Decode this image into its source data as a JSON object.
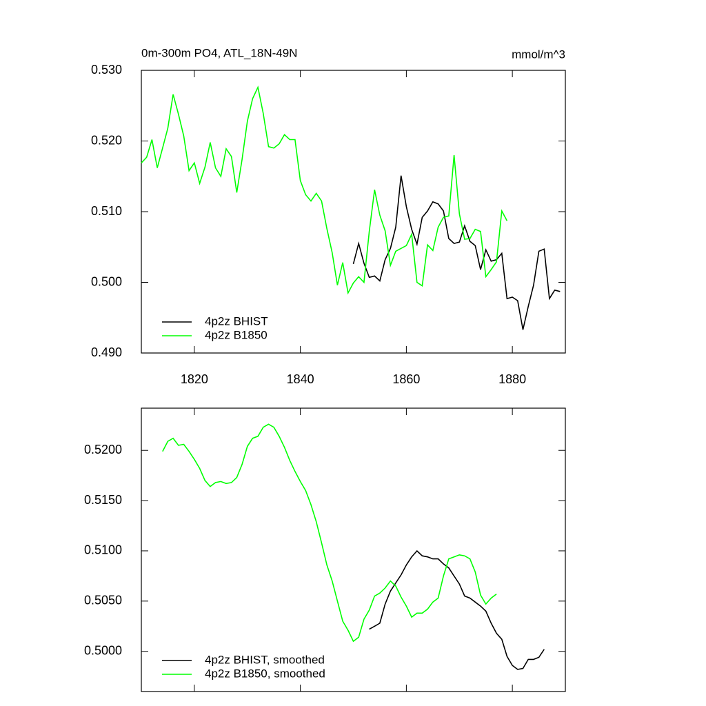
{
  "chart_data": [
    {
      "type": "line",
      "title": "0m-300m PO4, ATL_18N-49N",
      "units": "mmol/m^3",
      "xlim": [
        1810,
        1890
      ],
      "xticks": [
        1820,
        1840,
        1860,
        1880
      ],
      "ylim": [
        0.49,
        0.53
      ],
      "yticks": [
        {
          "value": 0.49,
          "label": "0.490"
        },
        {
          "value": 0.5,
          "label": "0.500"
        },
        {
          "value": 0.51,
          "label": "0.510"
        },
        {
          "value": 0.52,
          "label": "0.520"
        },
        {
          "value": 0.53,
          "label": "0.530"
        }
      ],
      "legend": "lower left",
      "series": [
        {
          "name": "4p2z BHIST",
          "color": "#000000",
          "x": [
            1850,
            1851,
            1852,
            1853,
            1854,
            1855,
            1856,
            1857,
            1858,
            1859,
            1860,
            1861,
            1862,
            1863,
            1864,
            1865,
            1866,
            1867,
            1868,
            1869,
            1870,
            1871,
            1872,
            1873,
            1874,
            1875,
            1876,
            1877,
            1878,
            1879,
            1880,
            1881,
            1882,
            1883,
            1884,
            1885,
            1886,
            1887,
            1888,
            1889
          ],
          "values": [
            0.5026,
            0.5055,
            0.5027,
            0.5007,
            0.5009,
            0.5002,
            0.5032,
            0.5048,
            0.5078,
            0.5151,
            0.5107,
            0.5075,
            0.5054,
            0.5092,
            0.5101,
            0.5114,
            0.5111,
            0.5101,
            0.5062,
            0.5055,
            0.5057,
            0.508,
            0.5058,
            0.5052,
            0.5018,
            0.5046,
            0.503,
            0.5032,
            0.5041,
            0.4977,
            0.4979,
            0.4974,
            0.4933,
            0.4966,
            0.4996,
            0.5044,
            0.5047,
            0.4977,
            0.4989,
            0.4987
          ]
        },
        {
          "name": "4p2z B1850",
          "color": "#00ff00",
          "x": [
            1810,
            1811,
            1812,
            1813,
            1814,
            1815,
            1816,
            1817,
            1818,
            1819,
            1820,
            1821,
            1822,
            1823,
            1824,
            1825,
            1826,
            1827,
            1828,
            1829,
            1830,
            1831,
            1832,
            1833,
            1834,
            1835,
            1836,
            1837,
            1838,
            1839,
            1840,
            1841,
            1842,
            1843,
            1844,
            1845,
            1846,
            1847,
            1848,
            1849,
            1850,
            1851,
            1852,
            1853,
            1854,
            1855,
            1856,
            1857,
            1858,
            1859,
            1860,
            1861,
            1862,
            1863,
            1864,
            1865,
            1866,
            1867,
            1868,
            1869,
            1870,
            1871,
            1872,
            1873,
            1874,
            1875,
            1876,
            1877,
            1878,
            1879
          ],
          "values": [
            0.5169,
            0.5177,
            0.5202,
            0.5162,
            0.519,
            0.5218,
            0.5266,
            0.5238,
            0.5207,
            0.5158,
            0.5169,
            0.514,
            0.5163,
            0.5198,
            0.5162,
            0.515,
            0.5189,
            0.5178,
            0.5127,
            0.5174,
            0.5228,
            0.526,
            0.5276,
            0.5239,
            0.5192,
            0.519,
            0.5196,
            0.5209,
            0.5202,
            0.5202,
            0.5144,
            0.5124,
            0.5115,
            0.5126,
            0.5115,
            0.5076,
            0.5042,
            0.4996,
            0.5028,
            0.4985,
            0.4999,
            0.5008,
            0.5,
            0.5072,
            0.5131,
            0.5095,
            0.5073,
            0.5024,
            0.5044,
            0.5048,
            0.5052,
            0.5068,
            0.5,
            0.4995,
            0.5053,
            0.5045,
            0.5078,
            0.5092,
            0.5094,
            0.518,
            0.5097,
            0.5061,
            0.5062,
            0.5075,
            0.5072,
            0.5008,
            0.5018,
            0.5029,
            0.5101,
            0.5087
          ]
        }
      ]
    },
    {
      "type": "line",
      "xlim": [
        1810,
        1890
      ],
      "xticks": [
        1820,
        1840,
        1860,
        1880
      ],
      "ylim": [
        0.496,
        0.5242
      ],
      "yticks": [
        {
          "value": 0.5,
          "label": "0.5000"
        },
        {
          "value": 0.505,
          "label": "0.5050"
        },
        {
          "value": 0.51,
          "label": "0.5100"
        },
        {
          "value": 0.515,
          "label": "0.5150"
        },
        {
          "value": 0.52,
          "label": "0.5200"
        }
      ],
      "legend": "lower left",
      "series": [
        {
          "name": "4p2z BHIST, smoothed",
          "color": "#000000",
          "x": [
            1853,
            1854,
            1855,
            1856,
            1857,
            1858,
            1859,
            1860,
            1861,
            1862,
            1863,
            1864,
            1865,
            1866,
            1867,
            1868,
            1869,
            1870,
            1871,
            1872,
            1873,
            1874,
            1875,
            1876,
            1877,
            1878,
            1879,
            1880,
            1881,
            1882,
            1883,
            1884,
            1885,
            1886
          ],
          "values": [
            0.5022,
            0.5025,
            0.5028,
            0.5047,
            0.506,
            0.5068,
            0.5076,
            0.5086,
            0.5094,
            0.51,
            0.5095,
            0.5094,
            0.5092,
            0.5092,
            0.5087,
            0.5083,
            0.5075,
            0.5067,
            0.5055,
            0.5053,
            0.5049,
            0.5045,
            0.504,
            0.5028,
            0.5018,
            0.5012,
            0.4995,
            0.4986,
            0.4982,
            0.4983,
            0.4992,
            0.4992,
            0.4994,
            0.5002
          ]
        },
        {
          "name": "4p2z B1850, smoothed",
          "color": "#00ff00",
          "x": [
            1814,
            1815,
            1816,
            1817,
            1818,
            1819,
            1820,
            1821,
            1822,
            1823,
            1824,
            1825,
            1826,
            1827,
            1828,
            1829,
            1830,
            1831,
            1832,
            1833,
            1834,
            1835,
            1836,
            1837,
            1838,
            1839,
            1840,
            1841,
            1842,
            1843,
            1844,
            1845,
            1846,
            1847,
            1848,
            1849,
            1850,
            1851,
            1852,
            1853,
            1854,
            1855,
            1856,
            1857,
            1858,
            1859,
            1860,
            1861,
            1862,
            1863,
            1864,
            1865,
            1866,
            1867,
            1868,
            1869,
            1870,
            1871,
            1872,
            1873,
            1874,
            1875,
            1876,
            1877
          ],
          "values": [
            0.5199,
            0.5209,
            0.5212,
            0.5205,
            0.5206,
            0.5199,
            0.5191,
            0.5182,
            0.517,
            0.5164,
            0.5168,
            0.5169,
            0.5167,
            0.5168,
            0.5173,
            0.5186,
            0.5204,
            0.5212,
            0.5214,
            0.5223,
            0.5226,
            0.5223,
            0.5214,
            0.5203,
            0.519,
            0.5179,
            0.5169,
            0.516,
            0.5146,
            0.5129,
            0.5108,
            0.5086,
            0.507,
            0.505,
            0.503,
            0.5021,
            0.501,
            0.5014,
            0.5032,
            0.5041,
            0.5055,
            0.5058,
            0.5063,
            0.507,
            0.5065,
            0.5054,
            0.5045,
            0.5034,
            0.5038,
            0.5038,
            0.5042,
            0.5049,
            0.5053,
            0.5075,
            0.5092,
            0.5094,
            0.5096,
            0.5095,
            0.5092,
            0.5079,
            0.5056,
            0.5047,
            0.5053,
            0.5057
          ]
        }
      ]
    }
  ]
}
